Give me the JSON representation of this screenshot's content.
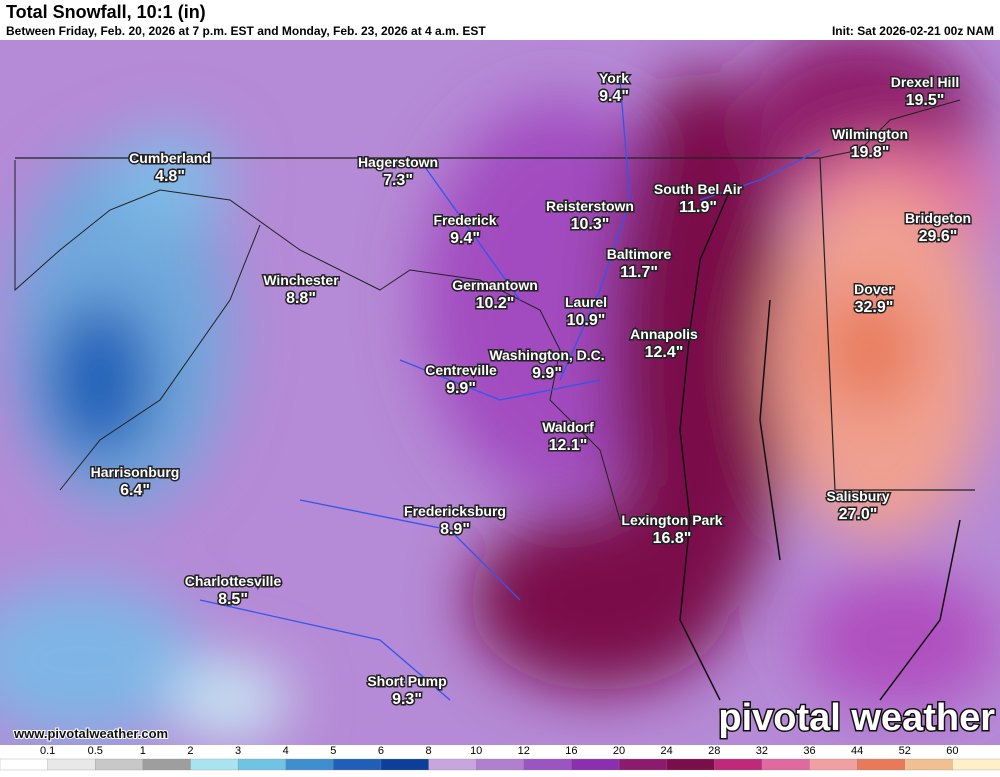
{
  "header": {
    "title": "Total Snowfall, 10:1 (in)",
    "subtitle": "Between Friday, Feb. 20, 2026 at 7 p.m. EST and Monday, Feb. 23, 2026 at 4 a.m. EST",
    "init": "Init: Sat 2026-02-21 00z NAM"
  },
  "cities": [
    {
      "name": "York",
      "amount": "9.4\""
    },
    {
      "name": "Drexel Hill",
      "amount": "19.5\""
    },
    {
      "name": "Wilmington",
      "amount": "19.8\""
    },
    {
      "name": "Cumberland",
      "amount": "4.8\""
    },
    {
      "name": "Hagerstown",
      "amount": "7.3\""
    },
    {
      "name": "South Bel Air",
      "amount": "11.9\""
    },
    {
      "name": "Reisterstown",
      "amount": "10.3\""
    },
    {
      "name": "Frederick",
      "amount": "9.4\""
    },
    {
      "name": "Bridgeton",
      "amount": "29.6\""
    },
    {
      "name": "Baltimore",
      "amount": "11.7\""
    },
    {
      "name": "Winchester",
      "amount": "8.8\""
    },
    {
      "name": "Germantown",
      "amount": "10.2\""
    },
    {
      "name": "Dover",
      "amount": "32.9\""
    },
    {
      "name": "Laurel",
      "amount": "10.9\""
    },
    {
      "name": "Annapolis",
      "amount": "12.4\""
    },
    {
      "name": "Washington, D.C.",
      "amount": "9.9\""
    },
    {
      "name": "Centreville",
      "amount": "9.9\""
    },
    {
      "name": "Waldorf",
      "amount": "12.1\""
    },
    {
      "name": "Harrisonburg",
      "amount": "6.4\""
    },
    {
      "name": "Salisbury",
      "amount": "27.0\""
    },
    {
      "name": "Fredericksburg",
      "amount": "8.9\""
    },
    {
      "name": "Lexington Park",
      "amount": "16.8\""
    },
    {
      "name": "Charlottesville",
      "amount": "8.5\""
    },
    {
      "name": "Short Pump",
      "amount": "9.3\""
    }
  ],
  "footer": {
    "website": "www.pivotalweather.com",
    "logo": "pivotal weather"
  },
  "colorbar": {
    "ticks": [
      0.1,
      0.5,
      1,
      2,
      3,
      4,
      5,
      6,
      8,
      10,
      12,
      16,
      20,
      24,
      28,
      32,
      36,
      44,
      52,
      60
    ],
    "colors": [
      "#ffffff",
      "#e8e8e8",
      "#c8c8c8",
      "#9e9e9e",
      "#a8e4f0",
      "#6fc4e4",
      "#3f8fd0",
      "#1f5fb8",
      "#0b3f99",
      "#c7a6dd",
      "#b07fd0",
      "#9a55c2",
      "#8a2fb0",
      "#8e1a70",
      "#7a0e4a",
      "#c2287a",
      "#e06aa0",
      "#f0a0a0",
      "#e87a5a",
      "#f0c090",
      "#fff0c8"
    ]
  }
}
